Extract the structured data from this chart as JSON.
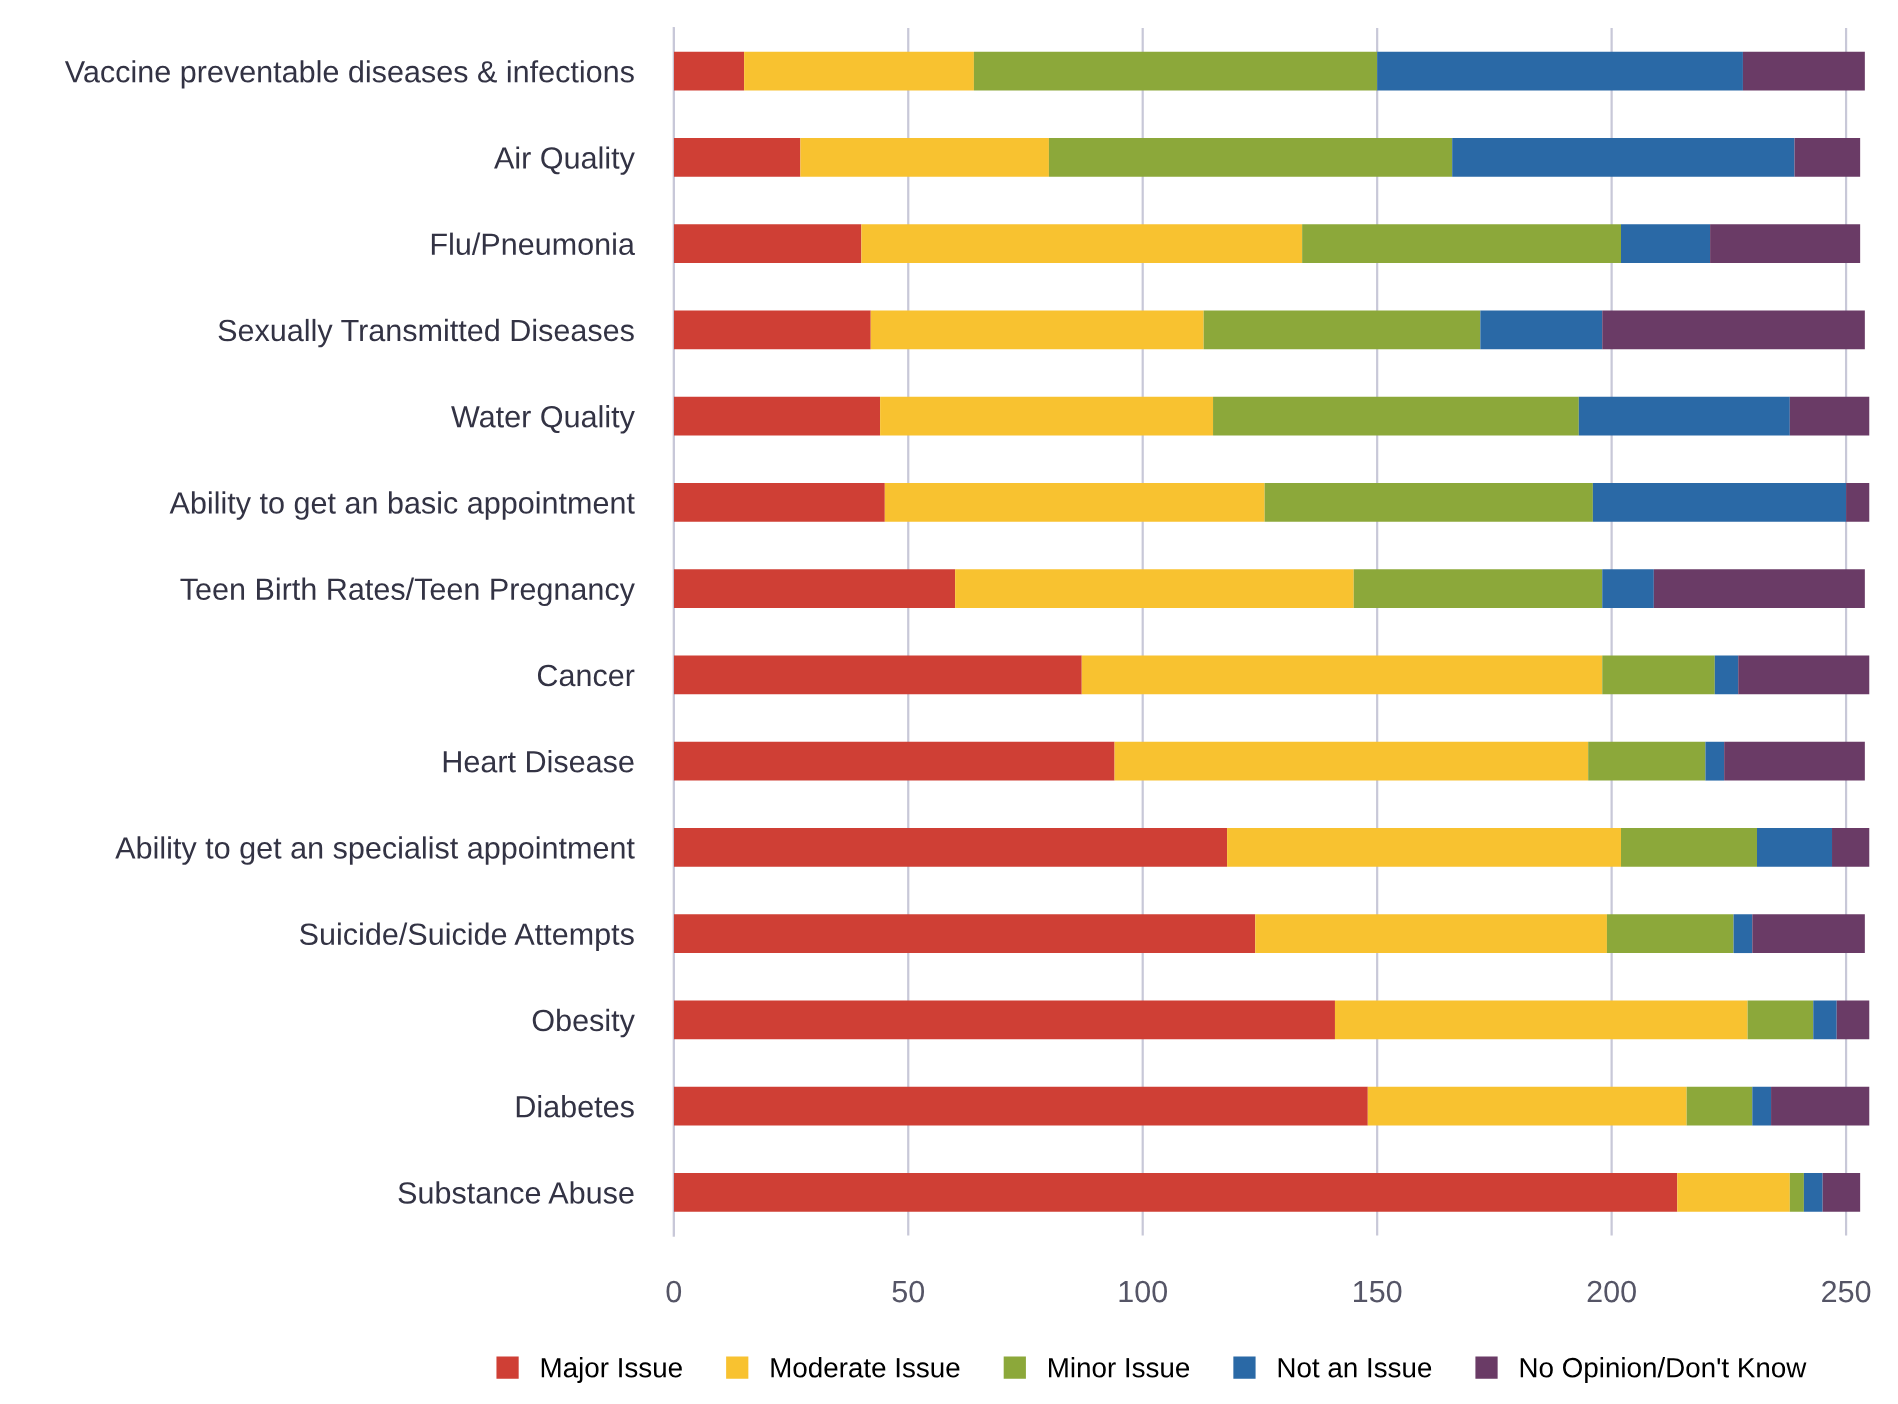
{
  "chart_data": {
    "type": "bar",
    "orientation": "horizontal",
    "stacked": true,
    "categories": [
      "Vaccine preventable diseases & infections",
      "Air Quality",
      "Flu/Pneumonia",
      "Sexually Transmitted Diseases",
      "Water Quality",
      "Ability to get an basic appointment",
      "Teen Birth Rates/Teen Pregnancy",
      "Cancer",
      "Heart Disease",
      "Ability to get an specialist appointment",
      "Suicide/Suicide Attempts",
      "Obesity",
      "Diabetes",
      "Substance Abuse"
    ],
    "series": [
      {
        "name": "Major Issue",
        "color": "#cf3f35",
        "values": [
          15,
          27,
          40,
          42,
          44,
          45,
          60,
          87,
          94,
          118,
          124,
          141,
          148,
          214
        ]
      },
      {
        "name": "Moderate Issue",
        "color": "#f8c230",
        "values": [
          49,
          53,
          94,
          71,
          71,
          81,
          85,
          111,
          101,
          84,
          75,
          88,
          68,
          24
        ]
      },
      {
        "name": "Minor Issue",
        "color": "#8ca83a",
        "values": [
          86,
          86,
          68,
          59,
          78,
          70,
          53,
          24,
          25,
          29,
          27,
          14,
          14,
          3
        ]
      },
      {
        "name": "Not an Issue",
        "color": "#2a69a6",
        "values": [
          78,
          73,
          19,
          26,
          45,
          54,
          11,
          5,
          4,
          16,
          4,
          5,
          4,
          4
        ]
      },
      {
        "name": "No Opinion/Don't Know",
        "color": "#6a3b66",
        "values": [
          26,
          14,
          32,
          56,
          17,
          5,
          45,
          28,
          30,
          8,
          24,
          7,
          21,
          8
        ]
      }
    ],
    "xlim": [
      0,
      255
    ],
    "xticks": [
      0,
      50,
      100,
      150,
      200,
      250
    ],
    "grid": "x",
    "legend": "bottom"
  }
}
